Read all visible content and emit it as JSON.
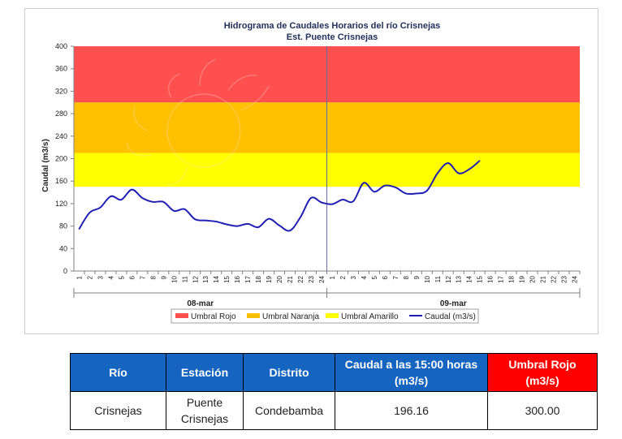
{
  "chart_data": {
    "type": "line",
    "title": "Hidrograma de Caudales Horarios del río Crisnejas",
    "subtitle": "Est. Puente Crisnejas",
    "ylabel": "Caudal  (m3/s)",
    "ylim": [
      0,
      400
    ],
    "yticks": [
      0,
      40,
      80,
      120,
      160,
      200,
      240,
      280,
      320,
      360,
      400
    ],
    "xtick_labels": [
      "1",
      "2",
      "3",
      "4",
      "5",
      "6",
      "7",
      "8",
      "9",
      "10",
      "11",
      "12",
      "13",
      "14",
      "15",
      "16",
      "17",
      "18",
      "19",
      "20",
      "21",
      "22",
      "23",
      "24",
      "1",
      "2",
      "3",
      "4",
      "5",
      "6",
      "7",
      "8",
      "9",
      "10",
      "11",
      "12",
      "13",
      "14",
      "15",
      "16",
      "17",
      "18",
      "19",
      "20",
      "21",
      "22",
      "23",
      "24"
    ],
    "days": [
      "08-mar",
      "09-mar"
    ],
    "bands": [
      {
        "name": "Umbral Rojo",
        "from": 300,
        "to": 400,
        "color": "#ff5050"
      },
      {
        "name": "Umbral Naranja",
        "from": 210,
        "to": 300,
        "color": "#ffc000"
      },
      {
        "name": "Umbral Amarillo",
        "from": 150,
        "to": 210,
        "color": "#ffff00"
      }
    ],
    "series": [
      {
        "name": "Caudal (m3/s)",
        "color": "#1f1fb4",
        "values": [
          75,
          104,
          113,
          133,
          127,
          145,
          130,
          123,
          123,
          107,
          110,
          92,
          90,
          88,
          83,
          80,
          84,
          78,
          93,
          81,
          72,
          96,
          130,
          122,
          119,
          127,
          124,
          157,
          141,
          152,
          149,
          138,
          138,
          143,
          174,
          192,
          174,
          181,
          196.16
        ]
      }
    ],
    "legend_position": "bottom",
    "grid": false
  },
  "table": {
    "headers": [
      "Río",
      "Estación",
      "Distrito",
      "Caudal a las 15:00 horas (m3/s)",
      "Umbral Rojo (m3/s)"
    ],
    "row": [
      "Crisnejas",
      "Puente Crisnejas",
      "Condebamba",
      "196.16",
      "300.00"
    ]
  }
}
